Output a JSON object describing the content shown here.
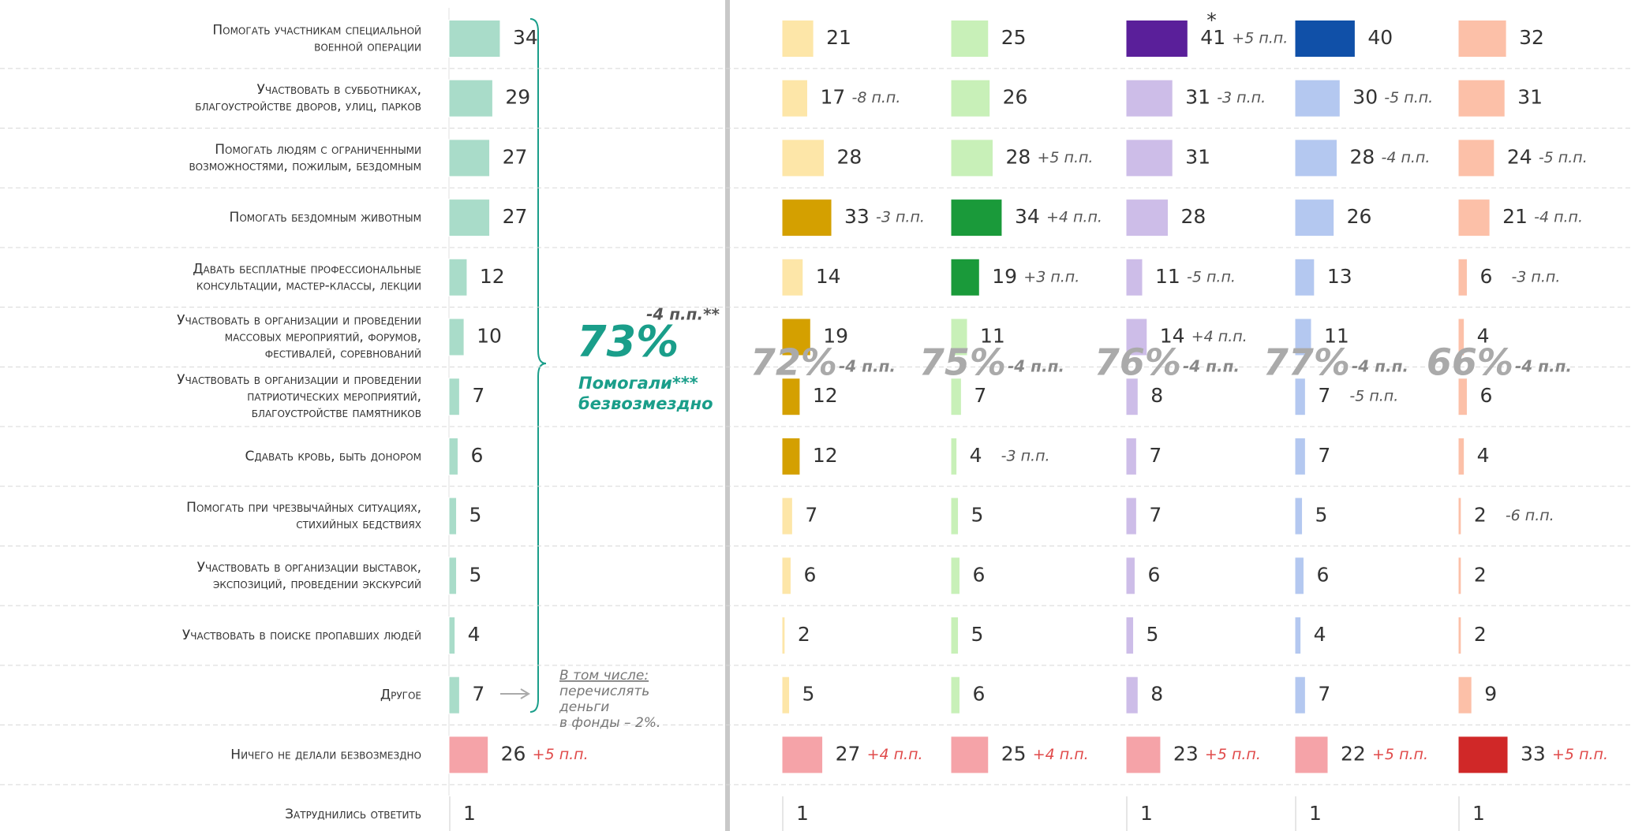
{
  "chart_data": {
    "type": "bar",
    "categories": [
      "Помогать участникам специальной\nвоенной операции",
      "Участвовать в субботниках,\nблагоустройстве дворов, улиц, парков",
      "Помогать людям с ограниченными\nвозможностями, пожилым, бездомным",
      "Помогать бездомным животным",
      "Давать бесплатные профессиональные\nконсультации, мастер-классы, лекции",
      "Участвовать в организации и проведении\nмассовых мероприятий, форумов,\nфестивалей, соревнований",
      "Участвовать в организации и проведении\nпатриотических мероприятий,\nблагоустройстве памятников",
      "Сдавать кровь, быть донором",
      "Помогать при чрезвычайных ситуациях,\nстихийных бедствиях",
      "Участвовать в организации выставок,\nэкспозиций, проведении экскурсий",
      "Участвовать в поиске пропавших людей",
      "Другое",
      "Ничего не делали безвозмездно",
      "Затруднились ответить"
    ],
    "series": [
      {
        "values": [
          34,
          29,
          27,
          27,
          12,
          10,
          7,
          6,
          5,
          5,
          4,
          7,
          26,
          1
        ],
        "colors": [
          "#a9dcc9",
          "#a9dcc9",
          "#a9dcc9",
          "#a9dcc9",
          "#a9dcc9",
          "#a9dcc9",
          "#a9dcc9",
          "#a9dcc9",
          "#a9dcc9",
          "#a9dcc9",
          "#a9dcc9",
          "#a9dcc9",
          "#f5a3a8",
          "#cccccc"
        ],
        "notes": [
          null,
          null,
          null,
          null,
          null,
          null,
          null,
          null,
          null,
          null,
          null,
          null,
          "+5 п.п.",
          null
        ],
        "total": "73%",
        "total_change": "-4 п.п.**",
        "total_label": [
          "Помогали***",
          "безвозмездно"
        ]
      },
      {
        "values": [
          21,
          17,
          28,
          33,
          14,
          19,
          12,
          12,
          7,
          6,
          2,
          5,
          27,
          1
        ],
        "colors": [
          "#fde6a8",
          "#fde6a8",
          "#fde6a8",
          "#d4a000",
          "#fde6a8",
          "#d4a000",
          "#d4a000",
          "#d4a000",
          "#fde6a8",
          "#fde6a8",
          "#fde6a8",
          "#fde6a8",
          "#f5a3a8",
          "#cccccc"
        ],
        "notes": [
          null,
          "-8 п.п.",
          null,
          "-3 п.п.",
          null,
          null,
          null,
          null,
          null,
          null,
          null,
          null,
          "+4 п.п.",
          null
        ],
        "total": "72%",
        "total_change": "-4 п.п."
      },
      {
        "values": [
          25,
          26,
          28,
          34,
          19,
          11,
          7,
          4,
          5,
          6,
          5,
          6,
          25,
          null
        ],
        "colors": [
          "#c8f0b8",
          "#c8f0b8",
          "#c8f0b8",
          "#1a9a3a",
          "#1a9a3a",
          "#c8f0b8",
          "#c8f0b8",
          "#c8f0b8",
          "#c8f0b8",
          "#c8f0b8",
          "#c8f0b8",
          "#c8f0b8",
          "#f5a3a8",
          "#cccccc"
        ],
        "notes": [
          null,
          null,
          "+5 п.п.",
          "+4 п.п.",
          "+3 п.п.",
          null,
          null,
          "-3 п.п.",
          null,
          null,
          null,
          null,
          "+4 п.п.",
          null
        ],
        "total": "75%",
        "total_change": "-4 п.п."
      },
      {
        "values": [
          41,
          31,
          31,
          28,
          11,
          14,
          8,
          7,
          7,
          6,
          5,
          8,
          23,
          1
        ],
        "colors": [
          "#5a1f9a",
          "#cdbde8",
          "#cdbde8",
          "#cdbde8",
          "#cdbde8",
          "#cdbde8",
          "#cdbde8",
          "#cdbde8",
          "#cdbde8",
          "#cdbde8",
          "#cdbde8",
          "#cdbde8",
          "#f5a3a8",
          "#cccccc"
        ],
        "notes": [
          "+5 п.п.",
          "-3 п.п.",
          null,
          null,
          "-5 п.п.",
          "+4 п.п.",
          null,
          null,
          null,
          null,
          null,
          null,
          "+5 п.п.",
          null
        ],
        "footnote": "*",
        "total": "76%",
        "total_change": "-4 п.п."
      },
      {
        "values": [
          40,
          30,
          28,
          26,
          13,
          11,
          7,
          7,
          5,
          6,
          4,
          7,
          22,
          1
        ],
        "colors": [
          "#1050a8",
          "#b4c8f0",
          "#b4c8f0",
          "#b4c8f0",
          "#b4c8f0",
          "#b4c8f0",
          "#b4c8f0",
          "#b4c8f0",
          "#b4c8f0",
          "#b4c8f0",
          "#b4c8f0",
          "#b4c8f0",
          "#f5a3a8",
          "#cccccc"
        ],
        "notes": [
          null,
          "-5 п.п.",
          "-4 п.п.",
          null,
          null,
          null,
          "-5 п.п.",
          null,
          null,
          null,
          null,
          null,
          "+5 п.п.",
          null
        ],
        "total": "77%",
        "total_change": "-4 п.п."
      },
      {
        "values": [
          32,
          31,
          24,
          21,
          6,
          4,
          6,
          4,
          2,
          2,
          2,
          9,
          33,
          1
        ],
        "colors": [
          "#fcc0a8",
          "#fcc0a8",
          "#fcc0a8",
          "#fcc0a8",
          "#fcc0a8",
          "#fcc0a8",
          "#fcc0a8",
          "#fcc0a8",
          "#fcc0a8",
          "#fcc0a8",
          "#fcc0a8",
          "#fcc0a8",
          "#d02828",
          "#cccccc"
        ],
        "notes": [
          null,
          null,
          "-5 п.п.",
          "-4 п.п.",
          "-3 п.п.",
          null,
          null,
          null,
          "-6 п.п.",
          null,
          null,
          null,
          "+5 п.п.",
          null
        ],
        "total": "66%",
        "total_change": "-4 п.п."
      }
    ],
    "other_note": [
      "В том числе:",
      "перечислять",
      "деньги",
      "в фонды – 2%."
    ]
  }
}
